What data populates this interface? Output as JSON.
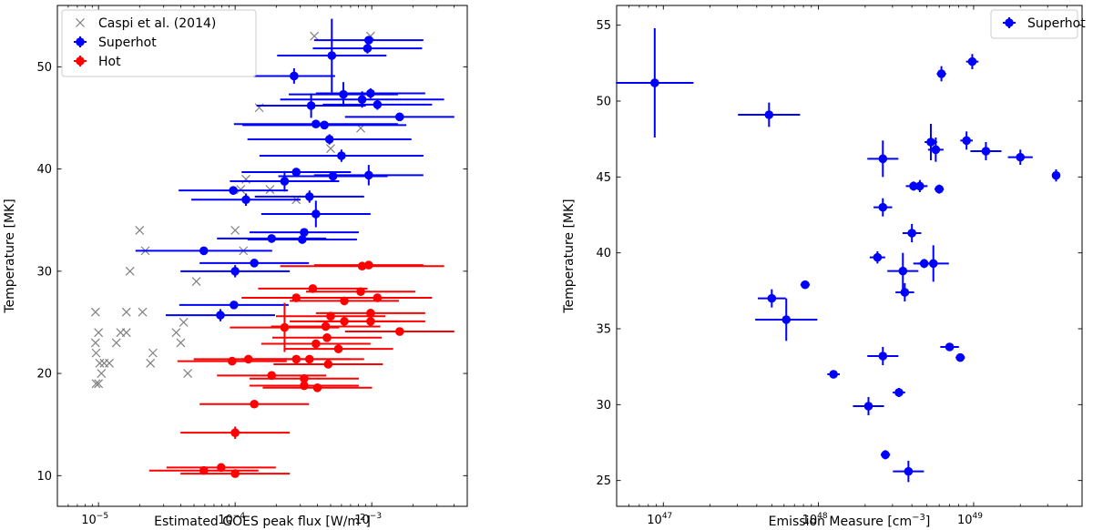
{
  "chart_data": [
    {
      "type": "scatter",
      "xscale": "log",
      "xlim": [
        5e-06,
        0.005
      ],
      "ylim": [
        7,
        56
      ],
      "xlabel": "Estimated GOES peak flux [W/m",
      "xlabel_sup": "2",
      "xlabel_end": "]",
      "ylabel": "Temperature [MK]",
      "xticks": [
        {
          "v": 1e-05,
          "base": "10",
          "exp": "−5"
        },
        {
          "v": 0.0001,
          "base": "10",
          "exp": "−4"
        },
        {
          "v": 0.001,
          "base": "10",
          "exp": "−3"
        }
      ],
      "yticks": [
        10,
        20,
        30,
        40,
        50
      ],
      "legend": {
        "position": "top-left",
        "entries": [
          {
            "label": "Caspi et al. (2014)",
            "color": "#808080",
            "marker": "x"
          },
          {
            "label": "Superhot",
            "color": "#0000ff",
            "marker": "errorbar"
          },
          {
            "label": "Hot",
            "color": "#ff0000",
            "marker": "errorbar"
          }
        ]
      },
      "series": [
        {
          "name": "Caspi et al. (2014)",
          "color": "#808080",
          "marker": "x",
          "points": [
            [
              9.5e-06,
              26
            ],
            [
              1e-05,
              24
            ],
            [
              9.5e-06,
              23
            ],
            [
              1.02e-05,
              21
            ],
            [
              9.6e-06,
              22
            ],
            [
              1.1e-05,
              21
            ],
            [
              1.05e-05,
              20
            ],
            [
              9.6e-06,
              19
            ],
            [
              1e-05,
              19
            ],
            [
              1.2e-05,
              21
            ],
            [
              1.35e-05,
              23
            ],
            [
              1.45e-05,
              24
            ],
            [
              1.6e-05,
              26
            ],
            [
              1.6e-05,
              24
            ],
            [
              1.7e-05,
              30
            ],
            [
              2e-05,
              34
            ],
            [
              2.1e-05,
              26
            ],
            [
              2.2e-05,
              32
            ],
            [
              2.4e-05,
              21
            ],
            [
              2.5e-05,
              22
            ],
            [
              3.7e-05,
              24
            ],
            [
              4e-05,
              23
            ],
            [
              4.2e-05,
              25
            ],
            [
              4.5e-05,
              20
            ],
            [
              5.2e-05,
              29
            ],
            [
              0.0001,
              34
            ],
            [
              0.00011,
              38
            ],
            [
              0.000115,
              32
            ],
            [
              0.00012,
              39
            ],
            [
              0.00015,
              46
            ],
            [
              0.00018,
              38
            ],
            [
              0.00028,
              37
            ],
            [
              0.00038,
              53
            ],
            [
              0.0005,
              42
            ],
            [
              0.00083,
              44
            ],
            [
              0.00098,
              53
            ]
          ]
        },
        {
          "name": "Superhot",
          "color": "#0000ff",
          "marker": "errorbar",
          "points": [
            [
              0.00027,
              49.1,
              0.3,
              0.75
            ],
            [
              0.00051,
              51.1,
              0.4,
              3.6
            ],
            [
              0.00093,
              51.8,
              0.4,
              0.5
            ],
            [
              0.00095,
              52.6,
              0.4,
              0.4
            ],
            [
              0.00036,
              46.2,
              0.4,
              1.2
            ],
            [
              0.00062,
              47.3,
              0.4,
              1.2
            ],
            [
              0.00085,
              46.8,
              0.6,
              0.8
            ],
            [
              0.00098,
              47.4,
              0.4,
              0.5
            ],
            [
              0.0011,
              46.3,
              0.4,
              0.5
            ],
            [
              0.0016,
              45.1,
              0.4,
              0.3
            ],
            [
              0.00039,
              44.4,
              0.6,
              0.3
            ],
            [
              0.00045,
              44.3,
              0.6,
              0.3
            ],
            [
              0.00049,
              42.9,
              0.6,
              0.5
            ],
            [
              0.00052,
              39.3,
              0.4,
              0.3
            ],
            [
              0.0006,
              41.3,
              0.6,
              0.6
            ],
            [
              0.00095,
              39.4,
              0.4,
              1.0
            ],
            [
              9.7e-05,
              37.9,
              0.4,
              0.3
            ],
            [
              0.00012,
              37.0,
              0.4,
              0.6
            ],
            [
              0.00023,
              38.8,
              0.4,
              1.0
            ],
            [
              0.00028,
              39.7,
              0.4,
              0.3
            ],
            [
              0.00035,
              37.3,
              0.4,
              0.6
            ],
            [
              0.00039,
              35.6,
              0.4,
              1.3
            ],
            [
              5.9e-05,
              32.0,
              0.5,
              0.3
            ],
            [
              0.000185,
              33.2,
              0.4,
              0.3
            ],
            [
              0.00032,
              33.8,
              0.4,
              0.3
            ],
            [
              0.00031,
              33.1,
              0.4,
              0.3
            ],
            [
              0.000138,
              30.8,
              0.4,
              0.3
            ],
            [
              0.0001,
              30.0,
              0.4,
              0.6
            ],
            [
              9.8e-05,
              26.7,
              0.4,
              0.3
            ],
            [
              7.8e-05,
              25.7,
              0.4,
              0.6
            ]
          ]
        },
        {
          "name": "Hot",
          "color": "#ff0000",
          "marker": "errorbar",
          "points": [
            [
              0.00023,
              24.5,
              0.4,
              2.4
            ],
            [
              0.00028,
              27.4,
              0.4,
              0.3
            ],
            [
              0.00037,
              28.3,
              0.4,
              0.3
            ],
            [
              0.00085,
              30.5,
              0.6,
              0.3
            ],
            [
              0.00095,
              30.6,
              0.4,
              0.3
            ],
            [
              0.00083,
              28.0,
              0.4,
              0.3
            ],
            [
              0.0011,
              27.4,
              0.4,
              0.3
            ],
            [
              0.00063,
              27.1,
              0.4,
              0.3
            ],
            [
              0.0005,
              25.6,
              0.4,
              0.3
            ],
            [
              0.00063,
              25.1,
              0.4,
              0.3
            ],
            [
              0.00098,
              25.9,
              0.4,
              0.3
            ],
            [
              0.00098,
              25.1,
              0.4,
              0.3
            ],
            [
              0.0016,
              24.1,
              0.4,
              0.3
            ],
            [
              0.00046,
              24.6,
              0.4,
              0.3
            ],
            [
              0.00047,
              23.5,
              0.4,
              0.3
            ],
            [
              0.00039,
              22.9,
              0.4,
              0.3
            ],
            [
              0.00057,
              22.4,
              0.4,
              0.3
            ],
            [
              0.00028,
              21.4,
              0.4,
              0.3
            ],
            [
              0.00035,
              21.4,
              0.4,
              0.3
            ],
            [
              0.00048,
              20.9,
              0.4,
              0.3
            ],
            [
              9.5e-05,
              21.2,
              0.4,
              0.3
            ],
            [
              0.000125,
              21.4,
              0.4,
              0.3
            ],
            [
              0.000185,
              19.8,
              0.4,
              0.3
            ],
            [
              0.00032,
              19.5,
              0.4,
              0.3
            ],
            [
              0.00032,
              18.8,
              0.4,
              0.3
            ],
            [
              0.0004,
              18.6,
              0.4,
              0.3
            ],
            [
              0.000138,
              17.0,
              0.4,
              0.3
            ],
            [
              0.0001,
              14.2,
              0.4,
              0.6
            ],
            [
              5.9e-05,
              10.5,
              0.4,
              0.3
            ],
            [
              7.9e-05,
              10.8,
              0.4,
              0.3
            ],
            [
              0.0001,
              10.2,
              0.4,
              0.3
            ]
          ]
        }
      ]
    },
    {
      "type": "scatter",
      "xscale": "log",
      "xlim": [
        5e+46,
        5e+49
      ],
      "ylim": [
        23.3,
        56.3
      ],
      "xlabel": "Emission Measure [cm",
      "xlabel_sup": "−3",
      "xlabel_end": "]",
      "ylabel": "Temperature [MK]",
      "xticks": [
        {
          "v": 1e+47,
          "base": "10",
          "exp": "47"
        },
        {
          "v": 1e+48,
          "base": "10",
          "exp": "48"
        },
        {
          "v": 1e+49,
          "base": "10",
          "exp": "49"
        }
      ],
      "yticks": [
        25,
        30,
        35,
        40,
        45,
        50,
        55
      ],
      "legend": {
        "position": "top-right",
        "entries": [
          {
            "label": "Superhot",
            "color": "#0000ff",
            "marker": "errorbar"
          }
        ]
      },
      "series": [
        {
          "name": "Superhot",
          "color": "#0000ff",
          "marker": "errorbar",
          "points": [
            [
              8.8e+46,
              51.2,
              0.25,
              3.6
            ],
            [
              4.8e+47,
              49.1,
              0.2,
              0.8
            ],
            [
              5e+47,
              37.0,
              0.09,
              0.6
            ],
            [
              6.2e+47,
              35.6,
              0.2,
              1.4
            ],
            [
              8.2e+47,
              37.9,
              0.03,
              0.2
            ],
            [
              1.25e+48,
              32.0,
              0.04,
              0.2
            ],
            [
              2.1e+48,
              29.9,
              0.1,
              0.6
            ],
            [
              2.4e+48,
              39.7,
              0.05,
              0.4
            ],
            [
              2.6e+48,
              46.2,
              0.1,
              1.2
            ],
            [
              2.6e+48,
              43.0,
              0.06,
              0.6
            ],
            [
              2.6e+48,
              33.2,
              0.1,
              0.6
            ],
            [
              2.7e+48,
              26.7,
              0.03,
              0.3
            ],
            [
              3.3e+48,
              30.8,
              0.04,
              0.3
            ],
            [
              3.5e+48,
              38.8,
              0.1,
              1.2
            ],
            [
              3.6e+48,
              37.4,
              0.06,
              0.6
            ],
            [
              3.8e+48,
              25.6,
              0.1,
              0.7
            ],
            [
              4e+48,
              41.3,
              0.06,
              0.6
            ],
            [
              4.1e+48,
              44.4,
              0.05,
              0.3
            ],
            [
              4.5e+48,
              44.4,
              0.05,
              0.4
            ],
            [
              4.8e+48,
              39.3,
              0.07,
              0.3
            ],
            [
              5.3e+48,
              47.3,
              0.04,
              1.2
            ],
            [
              5.5e+48,
              39.3,
              0.1,
              1.2
            ],
            [
              5.7e+48,
              46.8,
              0.05,
              0.8
            ],
            [
              6e+48,
              44.2,
              0.03,
              0.3
            ],
            [
              6.2e+48,
              51.8,
              0.03,
              0.5
            ],
            [
              7e+48,
              33.8,
              0.06,
              0.2
            ],
            [
              8.2e+48,
              33.1,
              0.03,
              0.2
            ],
            [
              9e+48,
              47.4,
              0.04,
              0.6
            ],
            [
              9.8e+48,
              52.6,
              0.04,
              0.5
            ],
            [
              1.2e+49,
              46.7,
              0.1,
              0.6
            ],
            [
              2e+49,
              46.3,
              0.08,
              0.5
            ],
            [
              3.4e+49,
              45.1,
              0.02,
              0.4
            ]
          ]
        }
      ]
    }
  ]
}
